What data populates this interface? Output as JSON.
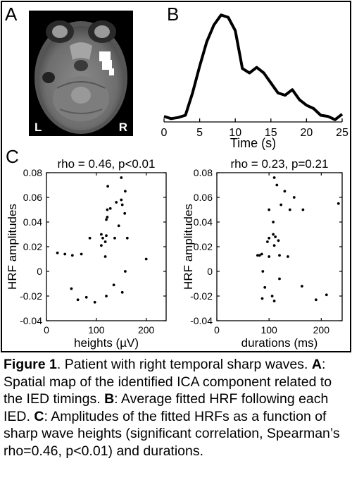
{
  "panels": {
    "a": {
      "letter": "A",
      "left_label": "L",
      "right_label": "R"
    },
    "b": {
      "letter": "B"
    },
    "c": {
      "letter": "C"
    }
  },
  "chart_data": [
    {
      "type": "line",
      "panel": "B",
      "title": "",
      "xlabel": "Time (s)",
      "ylabel": "",
      "xlim": [
        0,
        25
      ],
      "xticks": [
        0,
        5,
        10,
        15,
        20,
        25
      ],
      "x": [
        0,
        1,
        2,
        3,
        4,
        5,
        6,
        7,
        8,
        9,
        10,
        11,
        12,
        13,
        14,
        15,
        16,
        17,
        18,
        19,
        20,
        21,
        22,
        23,
        24,
        25
      ],
      "series": [
        {
          "values": [
            0.05,
            0.03,
            0.04,
            0.06,
            0.26,
            0.5,
            0.72,
            0.87,
            0.96,
            0.94,
            0.82,
            0.48,
            0.44,
            0.49,
            0.44,
            0.35,
            0.26,
            0.24,
            0.29,
            0.2,
            0.15,
            0.12,
            0.06,
            0.05,
            0.02,
            0.07
          ]
        }
      ]
    },
    {
      "type": "scatter",
      "panel": "C-left",
      "title": "rho = 0.46, p<0.01",
      "xlabel": "heights (µV)",
      "ylabel": "HRF amplitudes",
      "xlim": [
        0,
        240
      ],
      "ylim": [
        -0.04,
        0.08
      ],
      "xticks": [
        "0",
        "100",
        "200"
      ],
      "yticks": [
        "-0.04",
        "-0.02",
        "0",
        "0.02",
        "0.04",
        "0.06",
        "0.08"
      ],
      "points": [
        [
          150,
          0.076
        ],
        [
          123,
          0.069
        ],
        [
          158,
          0.065
        ],
        [
          150,
          0.058
        ],
        [
          140,
          0.056
        ],
        [
          152,
          0.054
        ],
        [
          128,
          0.051
        ],
        [
          122,
          0.05
        ],
        [
          157,
          0.047
        ],
        [
          122,
          0.044
        ],
        [
          120,
          0.042
        ],
        [
          145,
          0.037
        ],
        [
          110,
          0.03
        ],
        [
          120,
          0.029
        ],
        [
          87,
          0.027
        ],
        [
          113,
          0.027
        ],
        [
          137,
          0.027
        ],
        [
          162,
          0.027
        ],
        [
          118,
          0.024
        ],
        [
          110,
          0.021
        ],
        [
          22,
          0.015
        ],
        [
          37,
          0.014
        ],
        [
          70,
          0.014
        ],
        [
          52,
          0.013
        ],
        [
          118,
          0.012
        ],
        [
          200,
          0.01
        ],
        [
          158,
          0.0
        ],
        [
          50,
          -0.014
        ],
        [
          120,
          -0.02
        ],
        [
          80,
          -0.021
        ],
        [
          63,
          -0.023
        ],
        [
          97,
          -0.025
        ],
        [
          135,
          -0.011
        ],
        [
          152,
          -0.017
        ]
      ]
    },
    {
      "type": "scatter",
      "panel": "C-right",
      "title": "rho = 0.23, p=0.21",
      "xlabel": "durations (ms)",
      "ylabel": "HRF amplitudes",
      "xlim": [
        0,
        240
      ],
      "ylim": [
        -0.04,
        0.08
      ],
      "xticks": [
        "0",
        "100",
        "200"
      ],
      "yticks": [
        "-0.04",
        "-0.02",
        "0",
        "0.02",
        "0.04",
        "0.06",
        "0.08"
      ],
      "points": [
        [
          110,
          0.076
        ],
        [
          115,
          0.07
        ],
        [
          130,
          0.065
        ],
        [
          148,
          0.06
        ],
        [
          233,
          0.055
        ],
        [
          123,
          0.054
        ],
        [
          140,
          0.05
        ],
        [
          165,
          0.05
        ],
        [
          100,
          0.05
        ],
        [
          108,
          0.04
        ],
        [
          108,
          0.03
        ],
        [
          112,
          0.028
        ],
        [
          100,
          0.027
        ],
        [
          118,
          0.025
        ],
        [
          97,
          0.024
        ],
        [
          110,
          0.021
        ],
        [
          86,
          0.014
        ],
        [
          82,
          0.013
        ],
        [
          78,
          0.013
        ],
        [
          120,
          0.013
        ],
        [
          136,
          0.012
        ],
        [
          100,
          0.012
        ],
        [
          88,
          0.0
        ],
        [
          120,
          -0.006
        ],
        [
          92,
          -0.013
        ],
        [
          163,
          -0.012
        ],
        [
          106,
          -0.02
        ],
        [
          87,
          -0.022
        ],
        [
          110,
          -0.024
        ],
        [
          210,
          -0.019
        ],
        [
          190,
          -0.023
        ]
      ]
    }
  ],
  "caption": {
    "label": "Figure 1",
    "intro": ". Patient with right temporal sharp waves. ",
    "a_key": "A",
    "a_text": ": Spatial map of the identified ICA component related to the IED timings. ",
    "b_key": "B",
    "b_text": ": Average fitted HRF following each IED. ",
    "c_key": "C",
    "c_text": ": Amplitudes of the fitted HRFs as a function of sharp wave heights (significant correlation, Spearman’s rho=0.46, p<0.01) and durations."
  }
}
